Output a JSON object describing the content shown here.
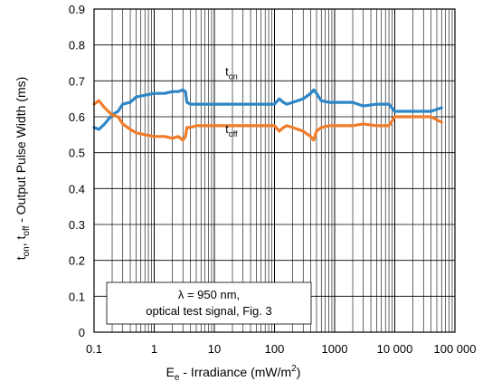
{
  "chart_data": {
    "type": "line",
    "x_scale": "log",
    "xlim": [
      0.1,
      100000
    ],
    "ylim": [
      0,
      0.9
    ],
    "x_ticks": [
      {
        "v": 0.1,
        "label": "0.1"
      },
      {
        "v": 1,
        "label": "1"
      },
      {
        "v": 10,
        "label": "10"
      },
      {
        "v": 100,
        "label": "100"
      },
      {
        "v": 1000,
        "label": "1000"
      },
      {
        "v": 10000,
        "label": "10 000"
      },
      {
        "v": 100000,
        "label": "100 000"
      }
    ],
    "y_ticks": [
      0,
      0.1,
      0.2,
      0.3,
      0.4,
      0.5,
      0.6,
      0.7,
      0.8,
      0.9
    ],
    "y_tick_labels": [
      "0",
      "0.1",
      "0.2",
      "0.3",
      "0.4",
      "0.5",
      "0.6",
      "0.7",
      "0.8",
      "0.9"
    ],
    "grid": true,
    "xlabel": {
      "main": "E",
      "sub": "e",
      "rest": " - Irradiance (mW/m",
      "sup": "2",
      "end": ")"
    },
    "ylabel": {
      "p1": "t",
      "s1": "on",
      "p2": ", t",
      "s2": "off",
      "p3": " - Output Pulse Width (ms)"
    },
    "annotation": [
      "λ = 950 nm,",
      "optical test signal, Fig. 3"
    ],
    "series": [
      {
        "name": "t",
        "sub": "on",
        "color": "#2e86c6",
        "label_at": [
          3.2,
          0.715
        ],
        "x": [
          0.1,
          0.12,
          0.15,
          0.2,
          0.25,
          0.3,
          0.4,
          0.5,
          0.7,
          1,
          1.5,
          2,
          2.5,
          3,
          3.3,
          3.5,
          4,
          5,
          7,
          10,
          20,
          50,
          100,
          120,
          140,
          160,
          200,
          300,
          400,
          450,
          500,
          600,
          800,
          1000,
          2000,
          3000,
          5000,
          8000,
          10000,
          20000,
          40000,
          60000
        ],
        "y": [
          0.57,
          0.565,
          0.58,
          0.605,
          0.615,
          0.635,
          0.64,
          0.655,
          0.66,
          0.665,
          0.665,
          0.67,
          0.67,
          0.675,
          0.67,
          0.64,
          0.635,
          0.635,
          0.635,
          0.635,
          0.635,
          0.635,
          0.635,
          0.65,
          0.64,
          0.635,
          0.64,
          0.65,
          0.665,
          0.675,
          0.665,
          0.645,
          0.64,
          0.64,
          0.64,
          0.63,
          0.635,
          0.635,
          0.615,
          0.615,
          0.615,
          0.625
        ]
      },
      {
        "name": "t",
        "sub": "off",
        "color": "#f07c2a",
        "label_at": [
          3.2,
          0.555
        ],
        "x": [
          0.1,
          0.12,
          0.15,
          0.2,
          0.25,
          0.3,
          0.4,
          0.5,
          0.7,
          1,
          1.5,
          2,
          2.5,
          3,
          3.3,
          3.5,
          4,
          5,
          7,
          10,
          20,
          50,
          100,
          120,
          140,
          160,
          200,
          300,
          400,
          450,
          500,
          600,
          800,
          1000,
          2000,
          3000,
          5000,
          8000,
          10000,
          20000,
          40000,
          60000
        ],
        "y": [
          0.635,
          0.645,
          0.625,
          0.605,
          0.6,
          0.58,
          0.565,
          0.555,
          0.55,
          0.545,
          0.545,
          0.54,
          0.545,
          0.535,
          0.545,
          0.57,
          0.57,
          0.575,
          0.575,
          0.575,
          0.575,
          0.575,
          0.575,
          0.56,
          0.57,
          0.575,
          0.57,
          0.56,
          0.545,
          0.535,
          0.56,
          0.57,
          0.575,
          0.575,
          0.575,
          0.58,
          0.575,
          0.575,
          0.6,
          0.6,
          0.6,
          0.585
        ]
      }
    ]
  }
}
